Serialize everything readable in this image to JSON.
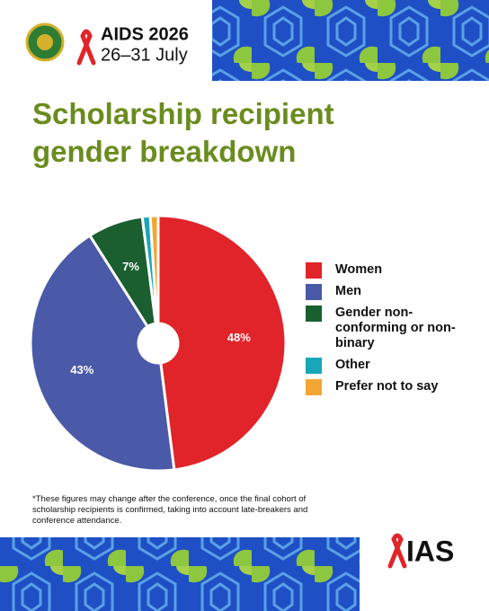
{
  "event": {
    "name": "AIDS 2026",
    "dates": "26–31 July"
  },
  "chart_data": {
    "type": "donut",
    "title": "Scholarship recipient gender breakdown",
    "categories": [
      "Women",
      "Men",
      "Gender non-conforming or non-binary",
      "Other",
      "Prefer not to say"
    ],
    "values": [
      48,
      43,
      7,
      1,
      1
    ],
    "value_labels": [
      "48%",
      "43%",
      "7%",
      null,
      null
    ],
    "colors": [
      "#e1242a",
      "#4a59a8",
      "#1b5e30",
      "#19a6b8",
      "#f5a533"
    ],
    "legend": "right"
  },
  "footnote": "*These figures may change after the conference, once the final cohort of scholarship recipients is confirmed, taking into account late-breakers and conference attendance.",
  "brand": "IAS"
}
